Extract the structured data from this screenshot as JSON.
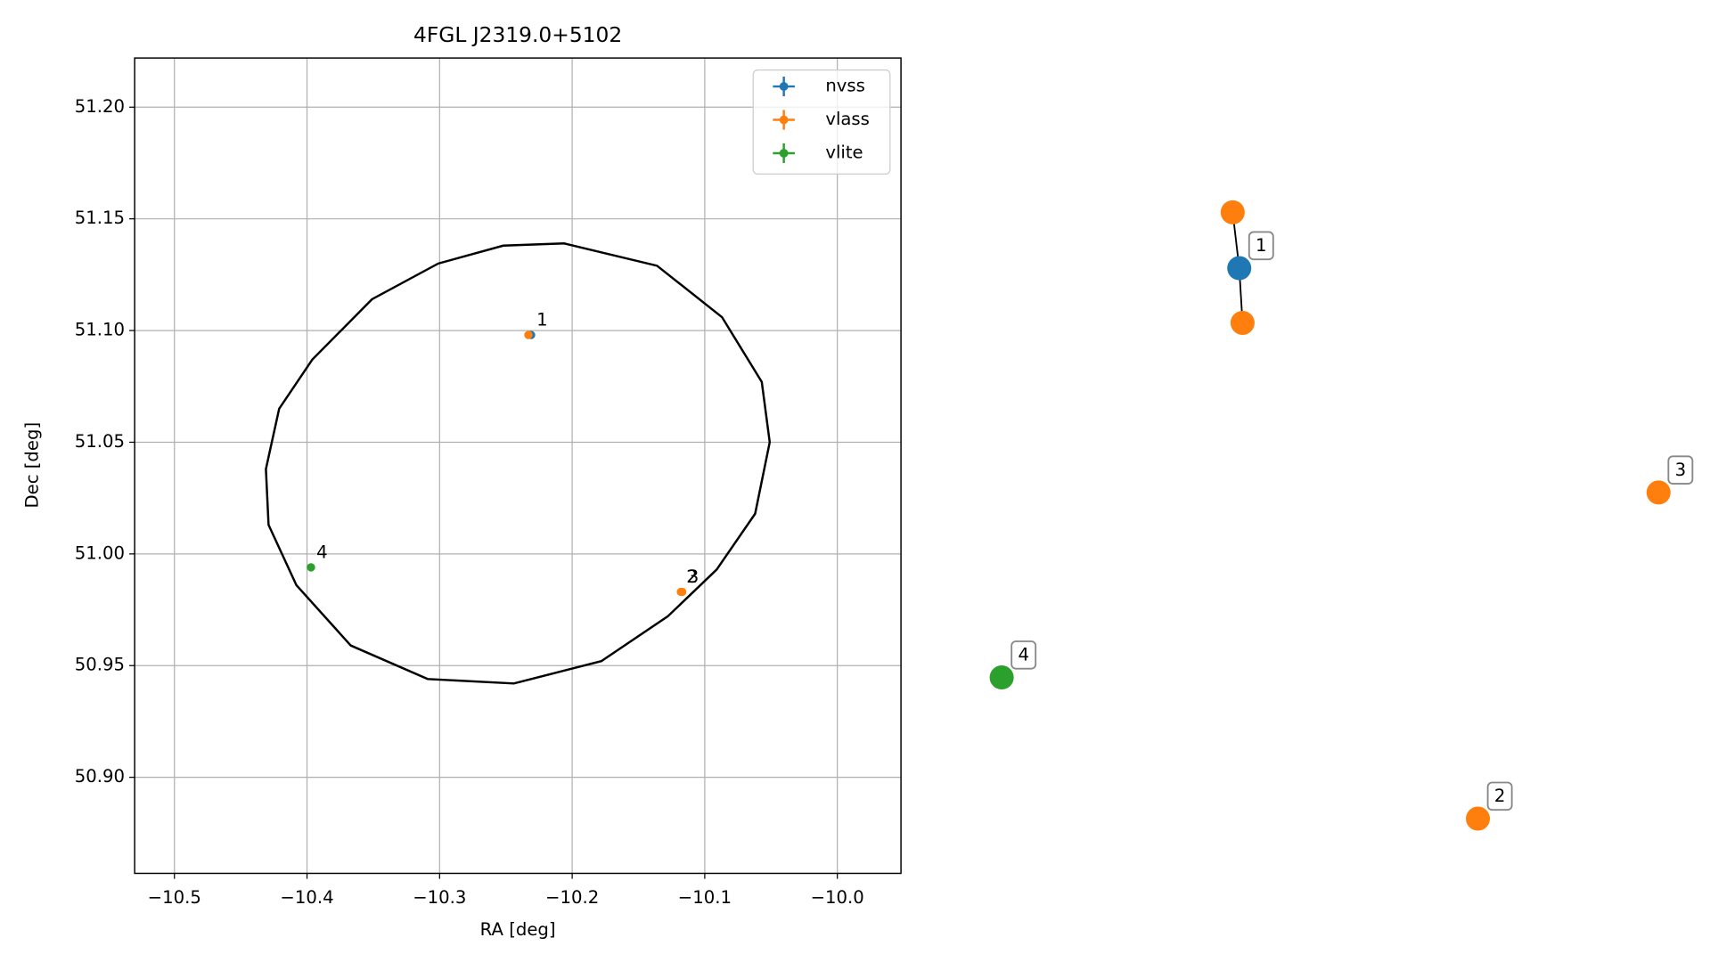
{
  "chart_data": {
    "type": "scatter",
    "title": "4FGL J2319.0+5102",
    "x_label": "RA [deg]",
    "y_label": "Dec [deg]",
    "xlim": [
      -10.53,
      -9.952
    ],
    "ylim": [
      50.857,
      51.222
    ],
    "xticks": [
      {
        "value": -10.5,
        "label": "−10.5"
      },
      {
        "value": -10.4,
        "label": "−10.4"
      },
      {
        "value": -10.3,
        "label": "−10.3"
      },
      {
        "value": -10.2,
        "label": "−10.2"
      },
      {
        "value": -10.1,
        "label": "−10.1"
      },
      {
        "value": -10.0,
        "label": "−10.0"
      }
    ],
    "yticks": [
      {
        "value": 50.9,
        "label": "50.90"
      },
      50.95,
      {
        "value": 51.0,
        "label": "51.00"
      },
      51.05,
      {
        "value": 51.1,
        "label": "51.10"
      },
      51.15,
      {
        "value": 51.2,
        "label": "51.20"
      }
    ],
    "grid": true,
    "legend": "upper right",
    "series": [
      {
        "name": "nvss",
        "color": "#1f77b4",
        "x": [
          -10.231
        ],
        "values": [
          51.098
        ]
      },
      {
        "name": "vlass",
        "color": "#ff7f0e",
        "x": [
          -10.233,
          -10.118,
          -10.117
        ],
        "values": [
          51.098,
          50.983,
          50.983
        ]
      },
      {
        "name": "vlite",
        "color": "#2ca02c",
        "x": [
          -10.397
        ],
        "values": [
          50.994
        ]
      }
    ],
    "ellipse": {
      "color": "#000000",
      "x": [
        -10.206,
        -10.136,
        -10.087,
        -10.057,
        -10.051,
        -10.062,
        -10.091,
        -10.128,
        -10.178,
        -10.244,
        -10.309,
        -10.367,
        -10.408,
        -10.429,
        -10.431,
        -10.421,
        -10.396,
        -10.351,
        -10.301,
        -10.252
      ],
      "y": [
        51.139,
        51.129,
        51.106,
        51.077,
        51.05,
        51.018,
        50.993,
        50.972,
        50.952,
        50.942,
        50.944,
        50.959,
        50.986,
        51.013,
        51.038,
        51.065,
        51.087,
        51.114,
        51.13,
        51.138
      ]
    },
    "annotations": [
      {
        "text": "1",
        "x": -10.231,
        "y": 51.098
      },
      {
        "text": "2",
        "x": -10.118,
        "y": 50.983
      },
      {
        "text": "3",
        "x": -10.117,
        "y": 50.983
      },
      {
        "text": "4",
        "x": -10.397,
        "y": 50.994
      }
    ]
  },
  "graph": {
    "nodes": [
      {
        "color": "#ff7f0e"
      },
      {
        "label": "1",
        "color": "#1f77b4"
      },
      {
        "color": "#ff7f0e"
      },
      {
        "label": "3",
        "color": "#ff7f0e"
      },
      {
        "label": "2",
        "color": "#ff7f0e"
      },
      {
        "label": "4",
        "color": "#2ca02c"
      }
    ],
    "edges": [
      [
        0,
        1
      ],
      [
        1,
        2
      ]
    ]
  }
}
